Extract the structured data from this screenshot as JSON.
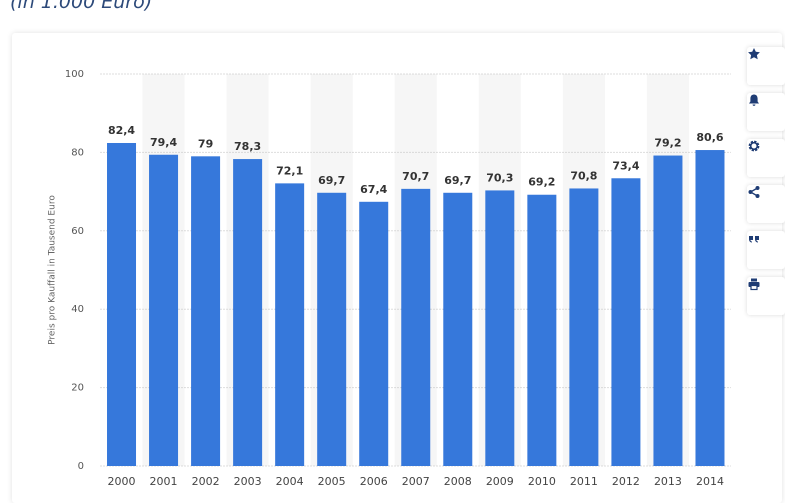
{
  "chart_data": {
    "type": "bar",
    "subtitle": "(in 1.000 Euro)",
    "y_label": "Preis pro Kauffall in Tausend Euro",
    "categories": [
      "2000",
      "2001",
      "2002",
      "2003",
      "2004",
      "2005",
      "2006",
      "2007",
      "2008",
      "2009",
      "2010",
      "2011",
      "2012",
      "2013",
      "2014"
    ],
    "values": [
      82.4,
      79.4,
      79,
      78.3,
      72.1,
      69.7,
      67.4,
      70.7,
      69.7,
      70.3,
      69.2,
      70.8,
      73.4,
      79.2,
      80.6
    ],
    "value_labels": [
      "82,4",
      "79,4",
      "79",
      "78,3",
      "72,1",
      "69,7",
      "67,4",
      "70,7",
      "69,7",
      "70,3",
      "69,2",
      "70,8",
      "73,4",
      "79,2",
      "80,6"
    ],
    "color": "#3678db",
    "ylim": [
      0,
      100
    ],
    "yticks": [
      0,
      20,
      40,
      60,
      80,
      100
    ],
    "grid": true
  }
}
